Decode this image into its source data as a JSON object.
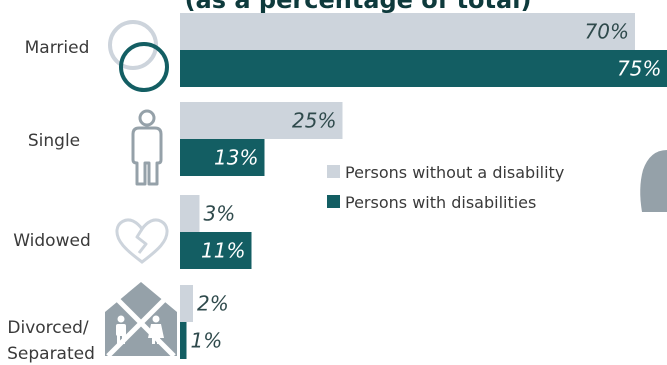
{
  "chart_data": {
    "type": "bar",
    "orientation": "horizontal",
    "title": "(as a percentage of total)",
    "categories": [
      "Married",
      "Single",
      "Widowed",
      "Divorced/ Separated"
    ],
    "category_lines": [
      [
        "Married"
      ],
      [
        "Single"
      ],
      [
        "Widowed"
      ],
      [
        "Divorced/",
        "Separated"
      ]
    ],
    "series": [
      {
        "name": "Persons without a disability",
        "values": [
          70,
          25,
          3,
          2
        ],
        "labels": [
          "70%",
          "25%",
          "3%",
          "2%"
        ],
        "color": "#cdd4dc"
      },
      {
        "name": "Persons with disabilities",
        "values": [
          75,
          13,
          11,
          1
        ],
        "labels": [
          "75%",
          "13%",
          "11%",
          "1%"
        ],
        "color": "#135e63"
      }
    ],
    "xlim": [
      0,
      75
    ],
    "grid": false,
    "legend_position": "center-right"
  },
  "icons": [
    "marriage-rings-icon",
    "person-icon",
    "broken-heart-icon",
    "divided-house-icon"
  ],
  "colors": {
    "accent_dark": "#135e63",
    "accent_light": "#cdd4dc",
    "icon_gray": "#95a1a9"
  }
}
